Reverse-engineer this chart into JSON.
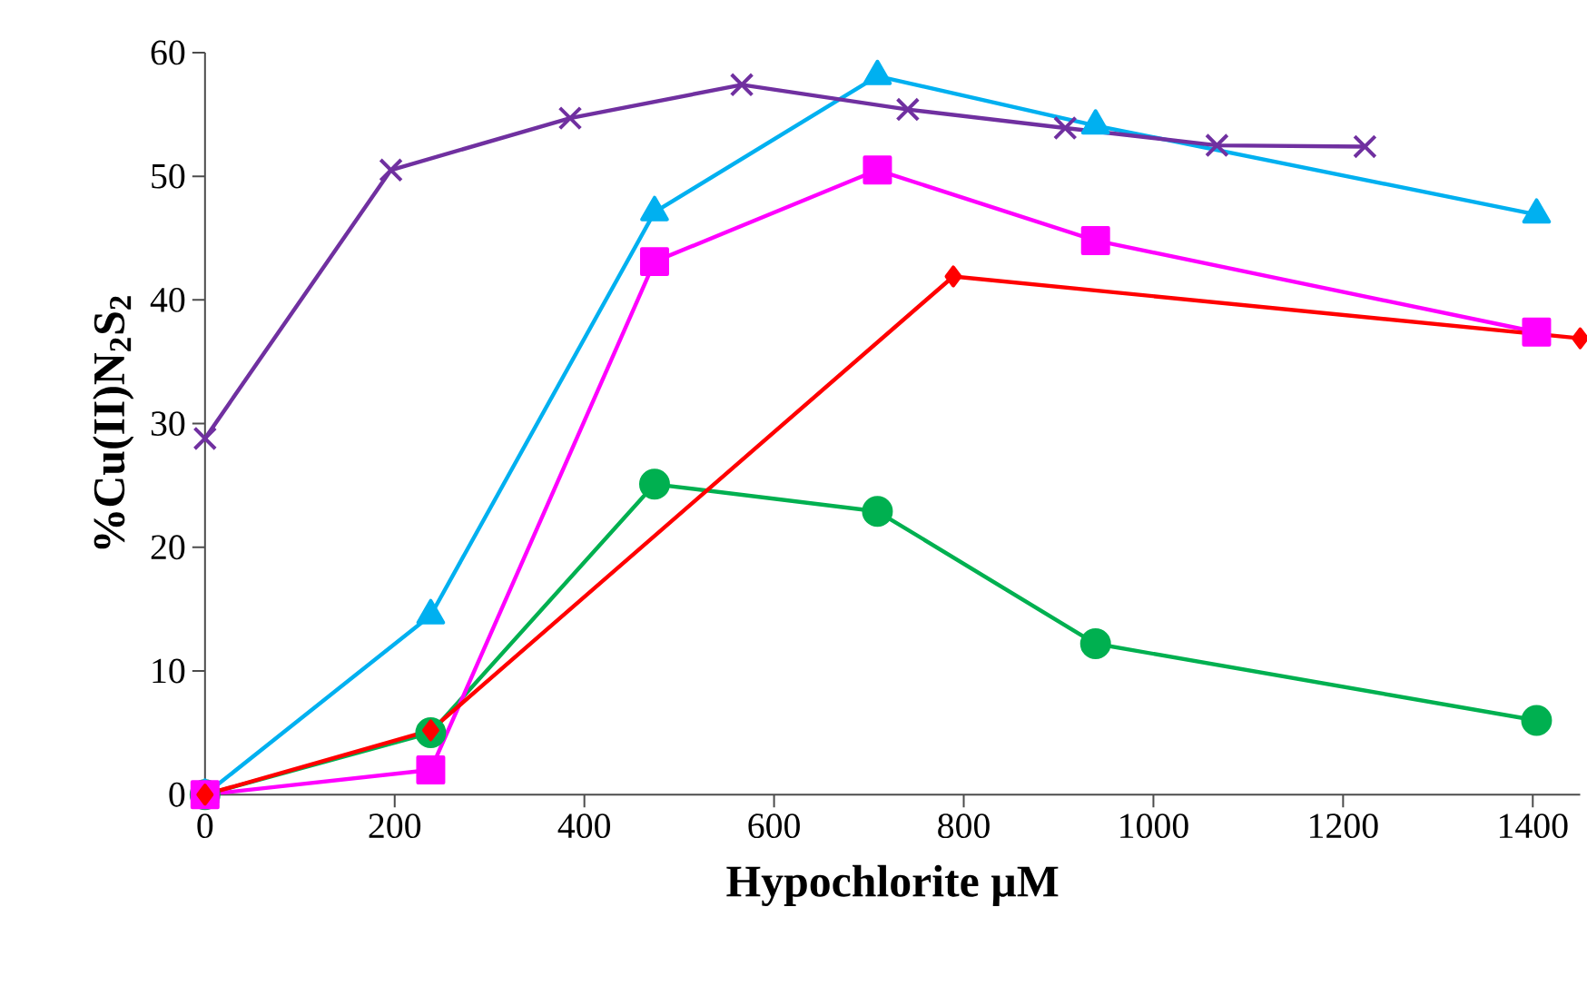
{
  "chart_data": {
    "type": "line",
    "xlabel": "Hypochlorite µM",
    "ylabel": "%Cu(II)N$_{2}$S$_{2}$",
    "xlim": [
      0,
      1450
    ],
    "xticks": [
      0,
      200,
      400,
      600,
      800,
      1000,
      1200,
      1400
    ],
    "ylim": [
      0,
      60
    ],
    "yticks": [
      0,
      10,
      20,
      30,
      40,
      50,
      60
    ],
    "grid": false,
    "line_style": "solid",
    "series": [
      {
        "color": "#00b050",
        "marker": "circle",
        "x": [
          0,
          238,
          474,
          709,
          939,
          1404
        ],
        "values": [
          0,
          5.0,
          25.1,
          22.9,
          12.2,
          6.0
        ]
      },
      {
        "color": "#00b0f0",
        "marker": "triangle",
        "x": [
          0,
          238,
          474,
          709,
          939,
          1404
        ],
        "values": [
          0,
          14.5,
          47.1,
          58.1,
          54.1,
          46.9
        ]
      },
      {
        "color": "#ff00ff",
        "marker": "square",
        "x": [
          0,
          238,
          474,
          709,
          939,
          1404
        ],
        "values": [
          0,
          2.0,
          43.1,
          50.5,
          44.8,
          37.4
        ]
      },
      {
        "color": "#ff0000",
        "marker": "diamond",
        "x": [
          0,
          238,
          789,
          1450
        ],
        "values": [
          0,
          5.2,
          41.9,
          36.9
        ]
      },
      {
        "color": "#7030a0",
        "marker": "cross",
        "x": [
          0,
          196,
          385,
          566,
          741,
          907,
          1067,
          1223
        ],
        "values": [
          28.8,
          50.5,
          54.7,
          57.4,
          55.4,
          53.9,
          52.5,
          52.4
        ]
      }
    ]
  }
}
